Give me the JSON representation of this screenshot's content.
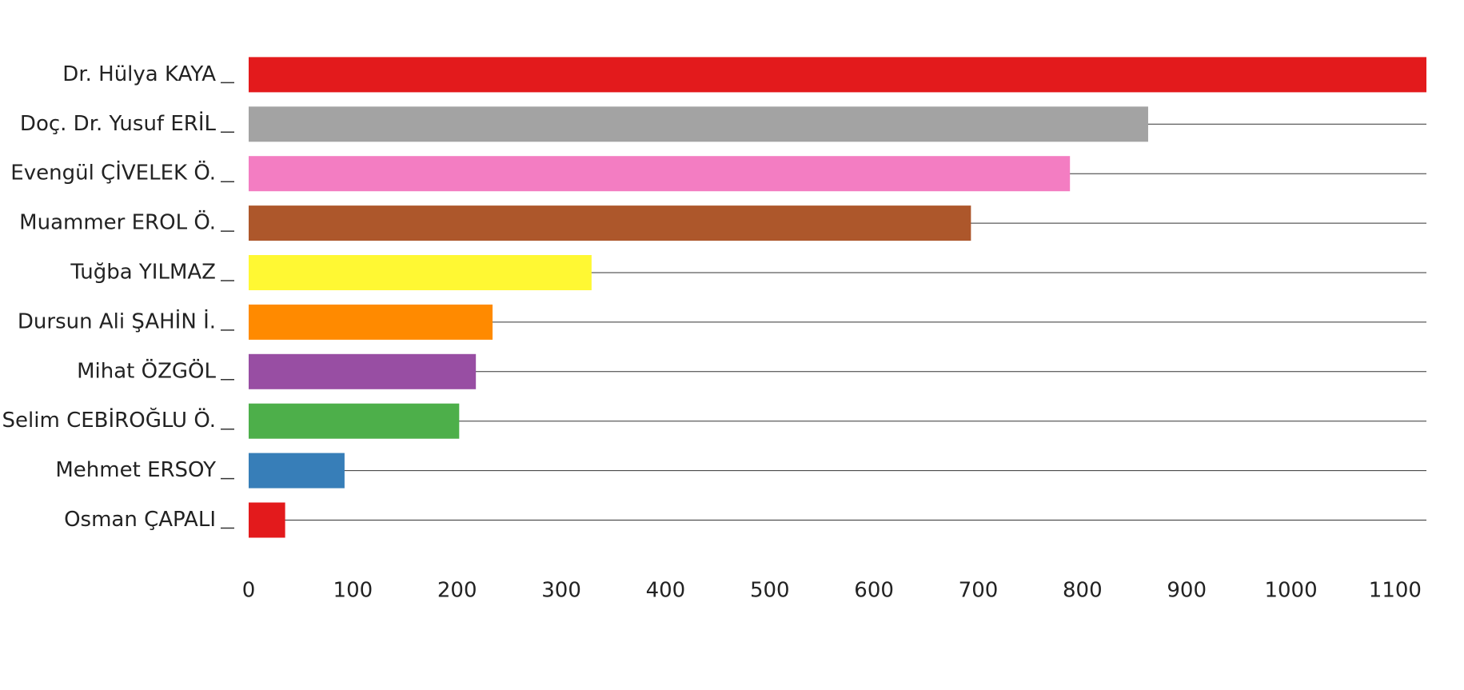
{
  "chart_data": {
    "type": "hbar",
    "categories": [
      "Dr. Hülya KAYA",
      "Doç. Dr. Yusuf ERİL",
      "Evengül ÇİVELEK Ö.",
      "Muammer EROL Ö.",
      "Tuğba YILMAZ",
      "Dursun Ali ŞAHİN İ.",
      "Mihat ÖZGÖL",
      "Selim CEBİROĞLU Ö.",
      "Mehmet ERSOY",
      "Osman ÇAPALI"
    ],
    "values": [
      1130,
      863,
      788,
      693,
      329,
      234,
      218,
      202,
      92,
      35
    ],
    "colors": [
      "#e31a1c",
      "#a3a3a3",
      "#f37dc2",
      "#ad572b",
      "#fff833",
      "#ff8a00",
      "#984ea3",
      "#4daf4a",
      "#377eb8",
      "#e31a1c"
    ],
    "xlim": [
      0,
      1130
    ],
    "xticks": [
      0,
      100,
      200,
      300,
      400,
      500,
      600,
      700,
      800,
      900,
      1000,
      1100
    ]
  }
}
